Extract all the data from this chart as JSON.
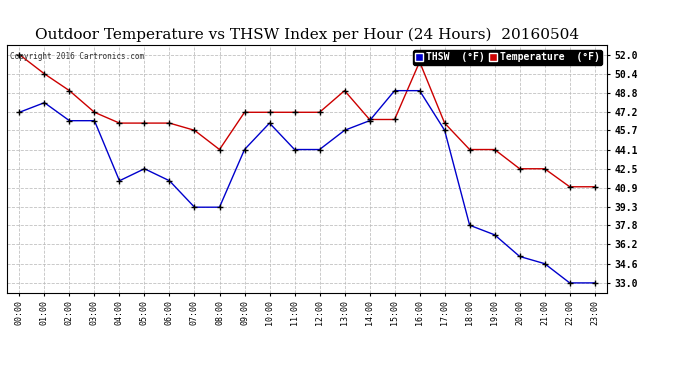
{
  "title": "Outdoor Temperature vs THSW Index per Hour (24 Hours)  20160504",
  "copyright": "Copyright 2016 Cartronics.com",
  "x_labels": [
    "00:00",
    "01:00",
    "02:00",
    "03:00",
    "04:00",
    "05:00",
    "06:00",
    "07:00",
    "08:00",
    "09:00",
    "10:00",
    "11:00",
    "12:00",
    "13:00",
    "14:00",
    "15:00",
    "16:00",
    "17:00",
    "18:00",
    "19:00",
    "20:00",
    "21:00",
    "22:00",
    "23:00"
  ],
  "temperature": [
    52.0,
    50.4,
    49.0,
    47.2,
    46.3,
    46.3,
    46.3,
    45.7,
    44.1,
    47.2,
    47.2,
    47.2,
    47.2,
    49.0,
    46.6,
    46.6,
    51.4,
    46.3,
    44.1,
    44.1,
    42.5,
    42.5,
    41.0,
    41.0
  ],
  "thsw": [
    47.2,
    48.0,
    46.5,
    46.5,
    41.5,
    42.5,
    41.5,
    39.3,
    39.3,
    44.1,
    46.3,
    44.1,
    44.1,
    45.7,
    46.5,
    49.0,
    49.0,
    45.7,
    37.8,
    37.0,
    35.2,
    34.6,
    33.0,
    33.0
  ],
  "y_ticks": [
    33.0,
    34.6,
    36.2,
    37.8,
    39.3,
    40.9,
    42.5,
    44.1,
    45.7,
    47.2,
    48.8,
    50.4,
    52.0
  ],
  "ylim": [
    32.2,
    52.8
  ],
  "temp_color": "#CC0000",
  "thsw_color": "#0000CC",
  "bg_color": "#ffffff",
  "plot_bg_color": "#ffffff",
  "grid_color": "#aaaaaa",
  "title_fontsize": 11,
  "legend_thsw_label": "THSW  (°F)",
  "legend_temp_label": "Temperature  (°F)"
}
